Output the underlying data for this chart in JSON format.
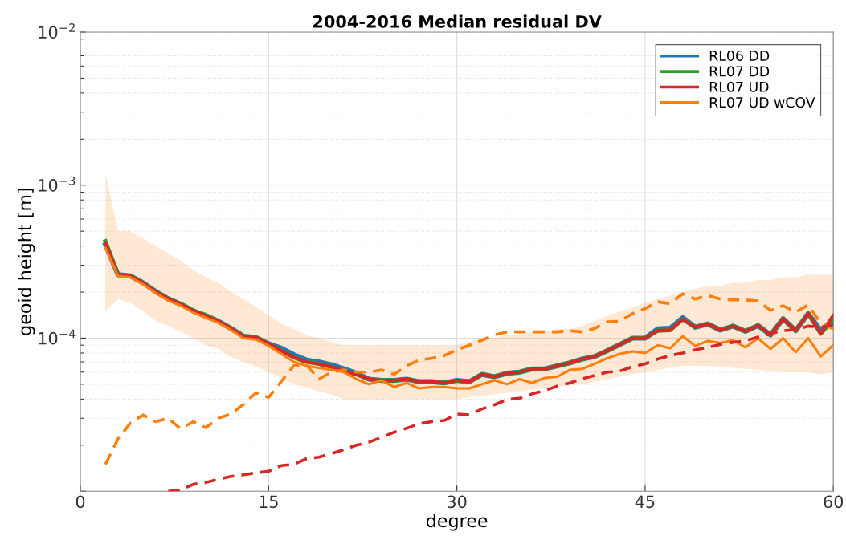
{
  "chart_data": {
    "type": "line",
    "title": "2004-2016 Median residual DV",
    "xlabel": "degree",
    "ylabel": "geoid height [m]",
    "x": [
      2,
      3,
      4,
      5,
      6,
      7,
      8,
      9,
      10,
      11,
      12,
      13,
      14,
      15,
      16,
      17,
      18,
      19,
      20,
      21,
      22,
      23,
      24,
      25,
      26,
      27,
      28,
      29,
      30,
      31,
      32,
      33,
      34,
      35,
      36,
      37,
      38,
      39,
      40,
      41,
      42,
      43,
      44,
      45,
      46,
      47,
      48,
      49,
      50,
      51,
      52,
      53,
      54,
      55,
      56,
      57,
      58,
      59,
      60
    ],
    "series": [
      {
        "name": "RL06 DD",
        "color": "#1f77b4",
        "values": [
          0.00041,
          0.00026,
          0.000255,
          0.00023,
          0.000202,
          0.000181,
          0.000167,
          0.000151,
          0.00014,
          0.000129,
          0.000116,
          0.000103,
          0.000101,
          9.2e-05,
          8.6e-05,
          7.8e-05,
          7.2e-05,
          7e-05,
          6.7e-05,
          6.3e-05,
          5.9e-05,
          5.4e-05,
          5.3e-05,
          5.3e-05,
          5.4e-05,
          5.2e-05,
          5.2e-05,
          5.1e-05,
          5.3e-05,
          5.2e-05,
          5.8e-05,
          5.6e-05,
          5.9e-05,
          6e-05,
          6.3e-05,
          6.3e-05,
          6.6e-05,
          6.9e-05,
          7.3e-05,
          7.6e-05,
          8.3e-05,
          9.1e-05,
          0.0001,
          0.0001,
          0.000115,
          0.000116,
          0.000136,
          0.000118,
          0.000124,
          0.000113,
          0.00012,
          0.000111,
          0.000121,
          0.000105,
          0.000134,
          0.000112,
          0.000145,
          0.000112,
          0.000128
        ]
      },
      {
        "name": "RL07 DD",
        "color": "#2ca02c",
        "values": [
          0.00043,
          0.00026,
          0.000255,
          0.00023,
          0.000202,
          0.000181,
          0.000167,
          0.000151,
          0.000142,
          0.000129,
          0.000116,
          0.000103,
          0.000101,
          9.2e-05,
          8.3e-05,
          7.5e-05,
          7e-05,
          6.8e-05,
          6.5e-05,
          6.1e-05,
          5.8e-05,
          5.4e-05,
          5.3e-05,
          5.3e-05,
          5.4e-05,
          5.2e-05,
          5.2e-05,
          5.1e-05,
          5.3e-05,
          5.2e-05,
          5.8e-05,
          5.6e-05,
          5.9e-05,
          6e-05,
          6.3e-05,
          6.3e-05,
          6.6e-05,
          6.9e-05,
          7.3e-05,
          7.6e-05,
          8.3e-05,
          9.1e-05,
          0.0001,
          0.0001,
          0.000112,
          0.000113,
          0.000133,
          0.000118,
          0.000124,
          0.000113,
          0.00012,
          0.000111,
          0.000121,
          0.000105,
          0.000134,
          0.000112,
          0.000145,
          0.000107,
          0.000133
        ]
      },
      {
        "name": "RL07 UD",
        "color": "#d62728",
        "values": [
          0.00042,
          0.00026,
          0.000255,
          0.00023,
          0.000202,
          0.000181,
          0.000167,
          0.000151,
          0.00014,
          0.000129,
          0.000116,
          0.000103,
          0.000101,
          9.2e-05,
          8.3e-05,
          7.5e-05,
          7e-05,
          6.8e-05,
          6.5e-05,
          6.1e-05,
          5.8e-05,
          5.4e-05,
          5.3e-05,
          5.3e-05,
          5.4e-05,
          5.2e-05,
          5.2e-05,
          5.1e-05,
          5.3e-05,
          5.2e-05,
          5.8e-05,
          5.6e-05,
          5.9e-05,
          6e-05,
          6.3e-05,
          6.3e-05,
          6.6e-05,
          6.9e-05,
          7.3e-05,
          7.6e-05,
          8.3e-05,
          9.1e-05,
          0.0001,
          0.0001,
          0.000112,
          0.000113,
          0.000133,
          0.000118,
          0.000124,
          0.000113,
          0.00012,
          0.000111,
          0.000121,
          0.000105,
          0.000134,
          0.000112,
          0.000145,
          0.000107,
          0.000141
        ]
      },
      {
        "name": "RL07 UD wCOV",
        "color": "#ff7f0e",
        "values": [
          0.00039,
          0.000255,
          0.00025,
          0.000225,
          0.000197,
          0.000176,
          0.000163,
          0.000147,
          0.000136,
          0.000126,
          0.000113,
          0.0001,
          9.8e-05,
          8.9e-05,
          7.9e-05,
          7e-05,
          6.6e-05,
          6.4e-05,
          6.2e-05,
          6e-05,
          5.4e-05,
          5e-05,
          5.3e-05,
          4.8e-05,
          5.1e-05,
          4.7e-05,
          4.8e-05,
          4.8e-05,
          4.7e-05,
          4.7e-05,
          5e-05,
          5.3e-05,
          5e-05,
          5.4e-05,
          5.1e-05,
          5.5e-05,
          5.6e-05,
          6.2e-05,
          6.3e-05,
          6.8e-05,
          7.4e-05,
          7.9e-05,
          8.2e-05,
          8e-05,
          9e-05,
          8.6e-05,
          0.000103,
          8.9e-05,
          9.6e-05,
          9.3e-05,
          9.7e-05,
          8.7e-05,
          0.0001,
          8.5e-05,
          0.0001,
          8.1e-05,
          0.0001,
          7.6e-05,
          9e-05
        ],
        "lower": [
          0.00015,
          0.00018,
          0.00017,
          0.00015,
          0.00013,
          0.00012,
          0.00011,
          0.0001,
          9e-05,
          8.5e-05,
          7.5e-05,
          7e-05,
          6.5e-05,
          6e-05,
          5.5e-05,
          5e-05,
          4.8e-05,
          4.5e-05,
          4.3e-05,
          4e-05,
          4e-05,
          4e-05,
          4e-05,
          4e-05,
          4e-05,
          4e-05,
          4e-05,
          4e-05,
          4e-05,
          4.1e-05,
          4.2e-05,
          4.3e-05,
          4.4e-05,
          4.5e-05,
          4.6e-05,
          4.7e-05,
          4.8e-05,
          4.9e-05,
          5e-05,
          5.2e-05,
          5.4e-05,
          5.6e-05,
          5.8e-05,
          6e-05,
          6.2e-05,
          6.4e-05,
          6.6e-05,
          6.6e-05,
          6.6e-05,
          6.5e-05,
          6.4e-05,
          6.3e-05,
          6.2e-05,
          6.1e-05,
          6e-05,
          6e-05,
          6e-05,
          5.8e-05,
          6e-05
        ],
        "upper": [
          0.0012,
          0.0005,
          0.0005,
          0.00045,
          0.0004,
          0.00036,
          0.00032,
          0.00028,
          0.00025,
          0.00023,
          0.0002,
          0.00018,
          0.00016,
          0.00014,
          0.000125,
          0.000115,
          0.000105,
          0.0001,
          9.5e-05,
          9e-05,
          9e-05,
          9e-05,
          9e-05,
          9e-05,
          9e-05,
          9e-05,
          9e-05,
          9e-05,
          9e-05,
          9.5e-05,
          0.0001,
          0.0001,
          0.000105,
          0.000105,
          0.00011,
          0.00011,
          0.000115,
          0.000115,
          0.00012,
          0.00013,
          0.00014,
          0.00015,
          0.00016,
          0.00017,
          0.00018,
          0.00019,
          0.0002,
          0.00021,
          0.00022,
          0.00022,
          0.00023,
          0.00023,
          0.00024,
          0.00024,
          0.00025,
          0.00025,
          0.00026,
          0.00026,
          0.00026
        ]
      },
      {
        "color": "#ff7f0e",
        "line_style": "dashed",
        "values": [
          1.5e-05,
          2.2e-05,
          2.8e-05,
          3.15e-05,
          2.85e-05,
          3e-05,
          2.56e-05,
          2.85e-05,
          2.6e-05,
          3e-05,
          3.2e-05,
          3.7e-05,
          4.4e-05,
          4.1e-05,
          5.2e-05,
          6.6e-05,
          6.7e-05,
          5.4e-05,
          6e-05,
          6.2e-05,
          6e-05,
          6e-05,
          6.2e-05,
          5.8e-05,
          6.6e-05,
          7.2e-05,
          7.4e-05,
          7.7e-05,
          8.4e-05,
          9e-05,
          9.7e-05,
          0.000105,
          0.00011,
          0.00011,
          0.00011,
          0.00011,
          0.00011,
          0.000112,
          0.00011,
          0.000116,
          0.000128,
          0.000129,
          0.000145,
          0.000156,
          0.000173,
          0.000168,
          0.000195,
          0.00018,
          0.00019,
          0.00018,
          0.000178,
          0.000178,
          0.000175,
          0.000152,
          0.000163,
          0.000148,
          0.000165,
          0.000125,
          0.000115
        ]
      },
      {
        "color": "#d62728",
        "line_style": "dashed",
        "values": [
          null,
          null,
          null,
          null,
          null,
          1e-05,
          1.02e-05,
          1.11e-05,
          1.14e-05,
          1.2e-05,
          1.25e-05,
          1.28e-05,
          1.32e-05,
          1.35e-05,
          1.47e-05,
          1.5e-05,
          1.63e-05,
          1.67e-05,
          1.76e-05,
          1.87e-05,
          2e-05,
          2.09e-05,
          2.25e-05,
          2.43e-05,
          2.58e-05,
          2.76e-05,
          2.85e-05,
          2.9e-05,
          3.2e-05,
          3.15e-05,
          3.45e-05,
          3.67e-05,
          3.98e-05,
          4.05e-05,
          4.33e-05,
          4.55e-05,
          4.86e-05,
          5.1e-05,
          5.43e-05,
          5.71e-05,
          6e-05,
          6.1e-05,
          6.5e-05,
          6.8e-05,
          7.3e-05,
          7.7e-05,
          8e-05,
          8.4e-05,
          8.7e-05,
          9.1e-05,
          9.4e-05,
          9.6e-05,
          0.000102,
          0.000107,
          0.000112,
          0.000114,
          0.00012,
          0.000118,
          0.000122
        ]
      }
    ],
    "log": "y",
    "xlim": [
      0,
      60
    ],
    "xticks": [
      0,
      15,
      30,
      45,
      60
    ],
    "ylim": [
      1e-05,
      0.01
    ],
    "yticks": [
      {
        "value": 1e-05,
        "label": null
      },
      {
        "value": 0.0001,
        "label": "10$^{−4}$"
      },
      {
        "value": 0.001,
        "label": "10$^{−3}$"
      },
      {
        "value": 0.01,
        "label": "10$^{−2}$"
      }
    ],
    "grid": true,
    "legend": "top right",
    "line_style": "solid",
    "marker": "none"
  }
}
